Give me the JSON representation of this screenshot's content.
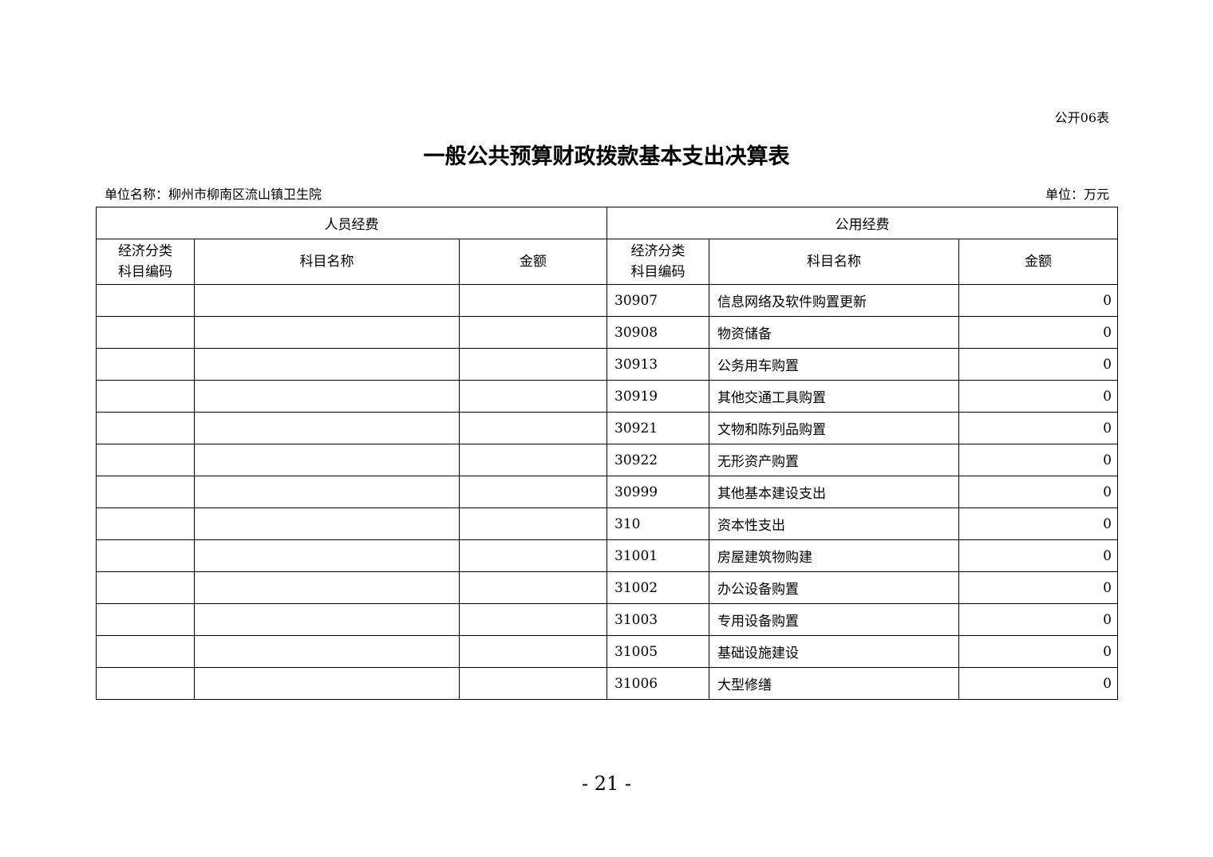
{
  "form_no": "公开06表",
  "title": "一般公共预算财政拨款基本支出决算表",
  "unit_name": "单位名称：柳州市柳南区流山镇卫生院",
  "unit": "单位：万元",
  "table": {
    "group_personnel": "人员经费",
    "group_public": "公用经费",
    "col_code_line1": "经济分类",
    "col_code_line2": "科目编码",
    "col_name": "科目名称",
    "col_amount": "金额",
    "rows": [
      {
        "code": "30907",
        "name": "信息网络及软件购置更新",
        "amount": "0"
      },
      {
        "code": "30908",
        "name": "物资储备",
        "amount": "0"
      },
      {
        "code": "30913",
        "name": "公务用车购置",
        "amount": "0"
      },
      {
        "code": "30919",
        "name": "其他交通工具购置",
        "amount": "0"
      },
      {
        "code": "30921",
        "name": "文物和陈列品购置",
        "amount": "0"
      },
      {
        "code": "30922",
        "name": "无形资产购置",
        "amount": "0"
      },
      {
        "code": "30999",
        "name": "其他基本建设支出",
        "amount": "0"
      },
      {
        "code": "310",
        "name": "资本性支出",
        "amount": "0"
      },
      {
        "code": "31001",
        "name": "房屋建筑物购建",
        "amount": "0"
      },
      {
        "code": "31002",
        "name": "办公设备购置",
        "amount": "0"
      },
      {
        "code": "31003",
        "name": "专用设备购置",
        "amount": "0"
      },
      {
        "code": "31005",
        "name": "基础设施建设",
        "amount": "0"
      },
      {
        "code": "31006",
        "name": "大型修缮",
        "amount": "0"
      }
    ]
  },
  "page_number": "- 21 -"
}
